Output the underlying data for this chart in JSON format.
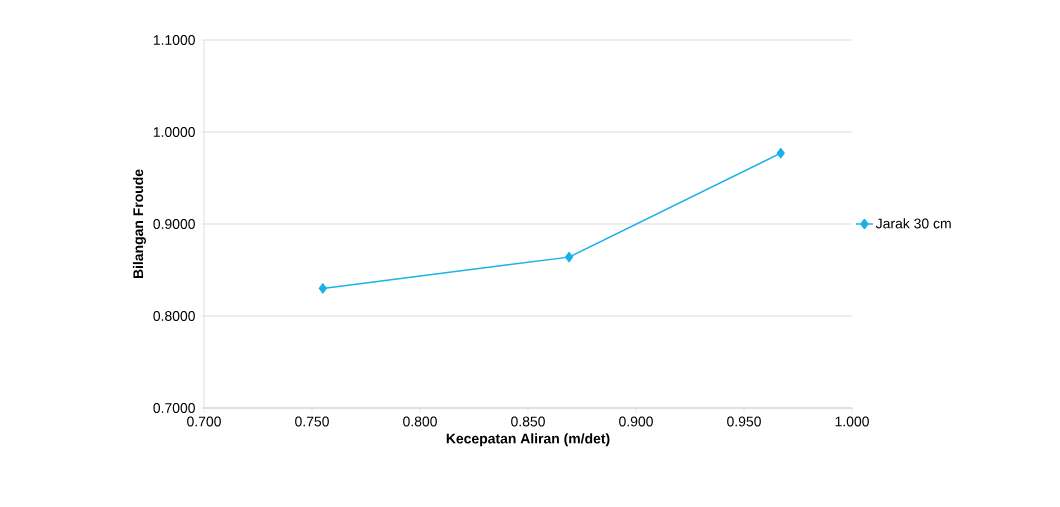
{
  "chart_data": {
    "type": "line",
    "xlabel": "Kecepatan Aliran (m/det)",
    "ylabel": "Bilangan Froude",
    "x": [
      0.755,
      0.869,
      0.967
    ],
    "series": [
      {
        "name": "Jarak 30 cm",
        "color": "#1ab0e8",
        "values": [
          0.83,
          0.864,
          0.977
        ]
      }
    ],
    "xlim": [
      0.7,
      1.0
    ],
    "xticks": [
      {
        "value": 0.7,
        "label": "0.700"
      },
      {
        "value": 0.75,
        "label": "0.750"
      },
      {
        "value": 0.8,
        "label": "0.800"
      },
      {
        "value": 0.85,
        "label": "0.850"
      },
      {
        "value": 0.9,
        "label": "0.900"
      },
      {
        "value": 0.95,
        "label": "0.950"
      },
      {
        "value": 1.0,
        "label": "1.000"
      }
    ],
    "ylim": [
      0.7,
      1.1
    ],
    "yticks": [
      {
        "value": 0.7,
        "label": "0.7000"
      },
      {
        "value": 0.8,
        "label": "0.8000"
      },
      {
        "value": 0.9,
        "label": "0.9000"
      },
      {
        "value": 1.0,
        "label": "1.0000"
      },
      {
        "value": 1.1,
        "label": "1.1000"
      }
    ],
    "grid": "y",
    "legend": "right",
    "marker": "diamond",
    "line_style": "solid"
  }
}
